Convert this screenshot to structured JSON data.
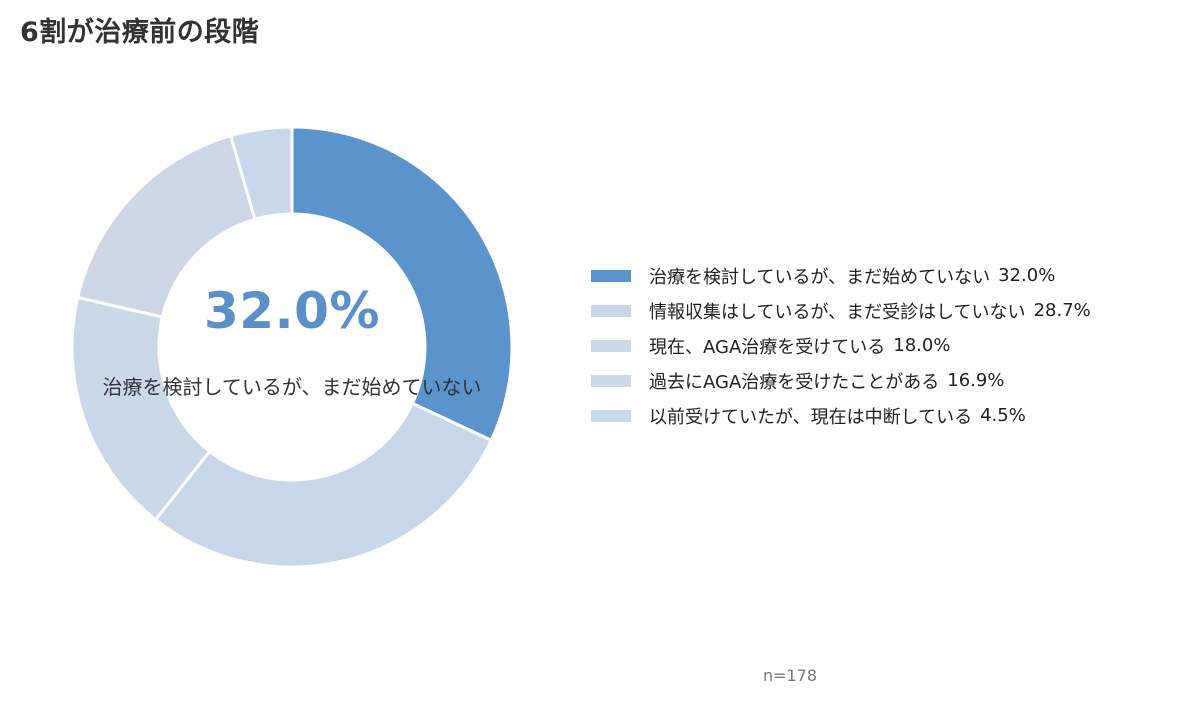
{
  "title": "6割が治療前の段階",
  "center": {
    "value": "32.0%",
    "label": "治療を検討しているが、まだ始めていない"
  },
  "footnote": "n=178",
  "chart_data": {
    "type": "pie",
    "donut": true,
    "title": "6割が治療前の段階",
    "categories": [
      "治療を検討しているが、まだ始めていない",
      "情報収集はしているが、まだ受診はしていない",
      "現在、AGA治療を受けている",
      "過去にAGA治療を受けたことがある",
      "以前受けていたが、現在は中断している"
    ],
    "values": [
      32.0,
      28.7,
      18.0,
      16.9,
      4.5
    ],
    "value_labels": [
      "32.0%",
      "28.7%",
      "18.0%",
      "16.9%",
      "4.5%"
    ],
    "colors": [
      "#5b93cc",
      "#c8d7ea",
      "#cad8ea",
      "#cdd7e7",
      "#c9d8ea"
    ],
    "legend_position": "right",
    "sample_size": "n=178"
  }
}
